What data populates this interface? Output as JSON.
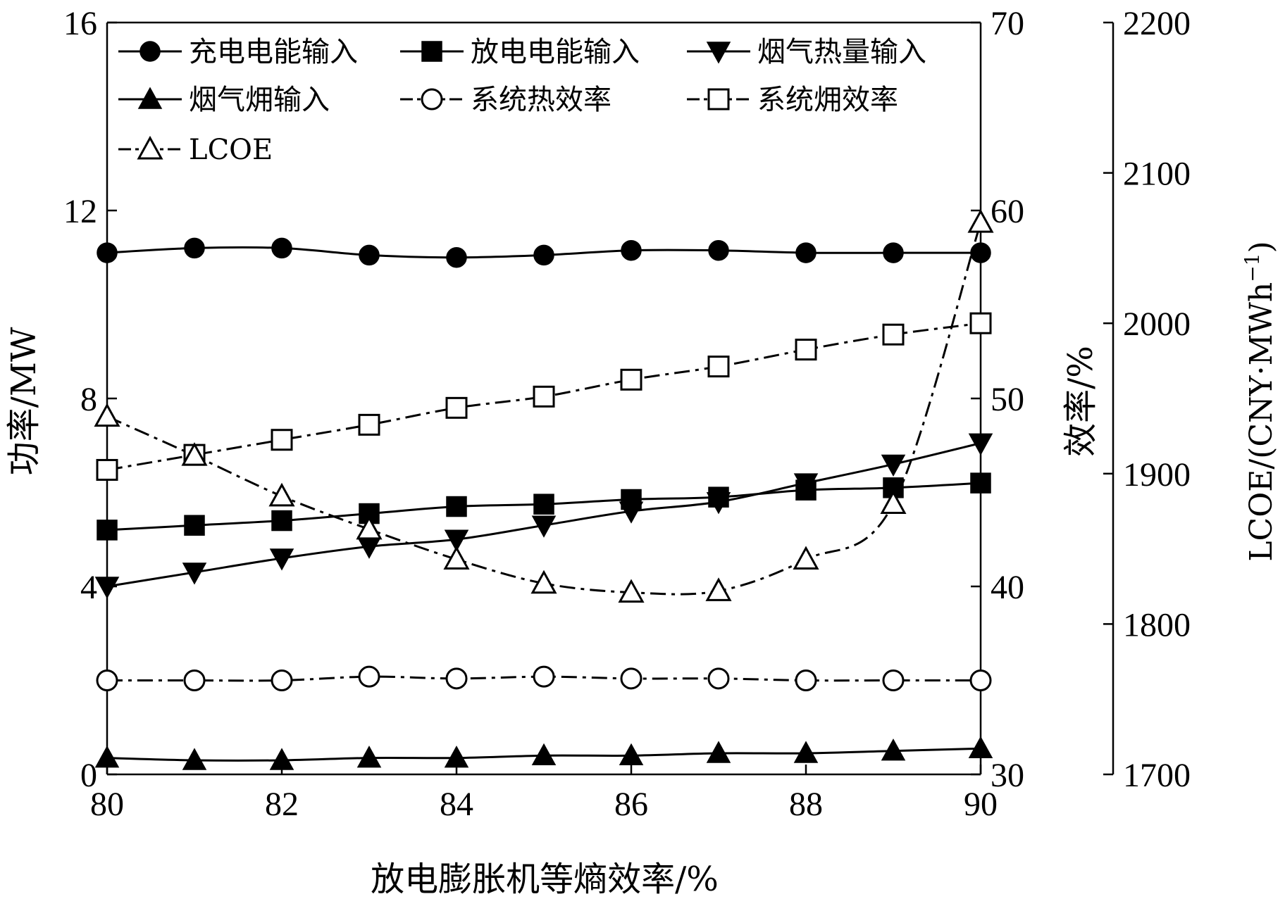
{
  "chart_data": {
    "type": "line",
    "x": [
      80,
      81,
      82,
      83,
      84,
      85,
      86,
      87,
      88,
      89,
      90
    ],
    "xlabel": "放电膨胀机等熵效率/%",
    "xlim": [
      80,
      90
    ],
    "xticks": [
      "80",
      "82",
      "84",
      "86",
      "88",
      "90"
    ],
    "left_axis": {
      "label": "功率/MW",
      "ylim": [
        0,
        16
      ],
      "ticks": [
        "0",
        "4",
        "8",
        "12",
        "16"
      ]
    },
    "right_axis_1": {
      "label": "效率/%",
      "ylim": [
        30,
        70
      ],
      "ticks": [
        "30",
        "40",
        "50",
        "60",
        "70"
      ]
    },
    "right_axis_2": {
      "label_prefix": "LCOE/(CNY·MWh",
      "label_sup": "−1",
      "label_suffix": ")",
      "ylim": [
        1700,
        2200
      ],
      "ticks": [
        "1700",
        "1800",
        "1900",
        "2000",
        "2100",
        "2200"
      ]
    },
    "series": [
      {
        "name": "充电电能输入",
        "axis": "left",
        "marker": "circle-filled",
        "dash": "solid",
        "values": [
          11.1,
          11.2,
          11.2,
          11.05,
          11.0,
          11.05,
          11.15,
          11.15,
          11.1,
          11.1,
          11.1
        ]
      },
      {
        "name": "放电电能输入",
        "axis": "left",
        "marker": "square-filled",
        "dash": "solid",
        "values": [
          5.2,
          5.3,
          5.4,
          5.55,
          5.7,
          5.75,
          5.85,
          5.9,
          6.05,
          6.1,
          6.2
        ]
      },
      {
        "name": "烟气热量输入",
        "axis": "left",
        "marker": "triangle-down-filled",
        "dash": "solid",
        "values": [
          4.0,
          4.3,
          4.6,
          4.85,
          5.0,
          5.3,
          5.6,
          5.8,
          6.2,
          6.6,
          7.05
        ]
      },
      {
        "name": "烟气㶲输入",
        "axis": "left",
        "marker": "triangle-up-filled",
        "dash": "solid",
        "values": [
          0.35,
          0.3,
          0.3,
          0.35,
          0.35,
          0.4,
          0.4,
          0.45,
          0.45,
          0.5,
          0.55
        ]
      },
      {
        "name": "系统热效率",
        "axis": "right1",
        "marker": "circle-open",
        "dash": "dashdot",
        "values": [
          35.0,
          35.0,
          35.0,
          35.2,
          35.1,
          35.2,
          35.1,
          35.1,
          35.0,
          35.0,
          35.0
        ]
      },
      {
        "name": "系统㶲效率",
        "axis": "right1",
        "marker": "square-open",
        "dash": "dashdot",
        "values": [
          46.2,
          47.0,
          47.8,
          48.6,
          49.5,
          50.1,
          51.0,
          51.7,
          52.6,
          53.4,
          54.0
        ]
      },
      {
        "name": "LCOE",
        "axis": "right2",
        "marker": "triangle-up-open",
        "dash": "dashdot",
        "values": [
          1938,
          1912,
          1885,
          1863,
          1843,
          1827,
          1821,
          1822,
          1843,
          1880,
          2067
        ]
      }
    ]
  }
}
